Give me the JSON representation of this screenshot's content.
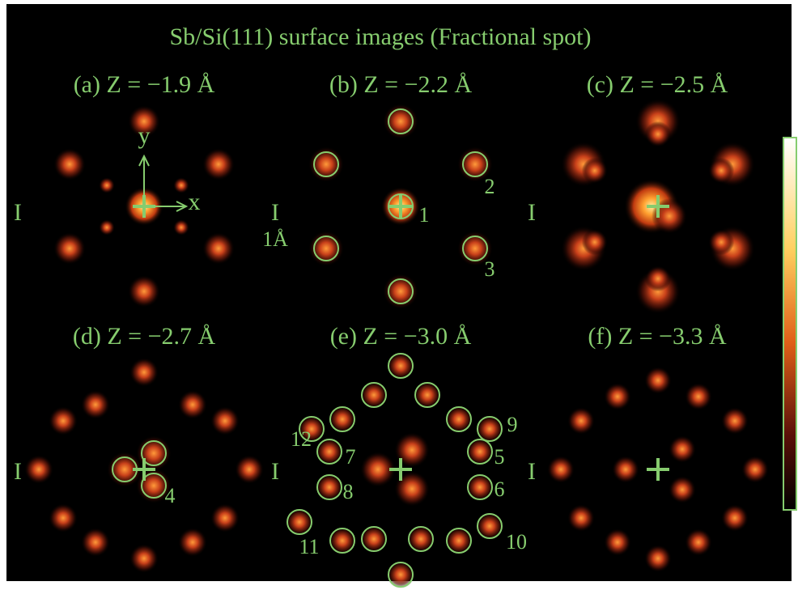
{
  "title": "Sb/Si(111) surface images (Fractional spot)",
  "panels": [
    {
      "label": "(a) Z = −1.9 Å",
      "side_mark": "I"
    },
    {
      "label": "(b) Z = −2.2 Å",
      "side_mark": "I"
    },
    {
      "label": "(c) Z = −2.5 Å",
      "side_mark": "I"
    },
    {
      "label": "(d) Z = −2.7 Å",
      "side_mark": "I"
    },
    {
      "label": "(e) Z = −3.0 Å",
      "side_mark": "I"
    },
    {
      "label": "(f) Z = −3.3 Å",
      "side_mark": "I"
    }
  ],
  "axis_labels": {
    "y": "y",
    "x": "x"
  },
  "scale_label": "1Å",
  "spot_numbers": [
    "1",
    "2",
    "3",
    "4",
    "5",
    "6",
    "7",
    "8",
    "9",
    "10",
    "11",
    "12"
  ]
}
